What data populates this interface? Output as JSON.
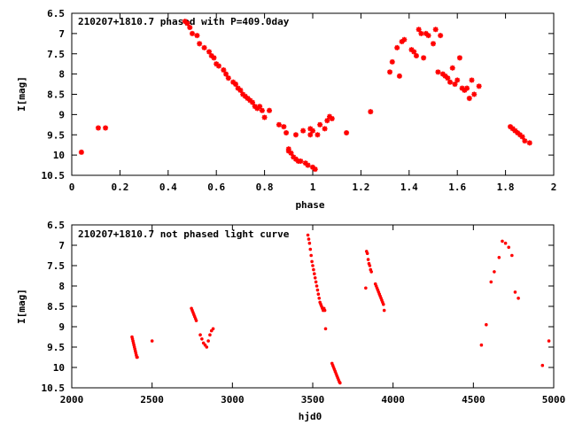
{
  "chart_data": [
    {
      "type": "scatter",
      "title": "210207+1810.7 phased with P=409.0day",
      "xlabel": "phase",
      "ylabel": "I[mag]",
      "xlim": [
        0,
        2
      ],
      "ylim": [
        10.5,
        6.5
      ],
      "y_inverted": true,
      "xticks": [
        "0",
        "0.2",
        "0.4",
        "0.6",
        "0.8",
        "1",
        "1.2",
        "1.4",
        "1.6",
        "1.8",
        "2"
      ],
      "yticks": [
        "6.5",
        "7",
        "7.5",
        "8",
        "8.5",
        "9",
        "9.5",
        "10",
        "10.5"
      ],
      "grid": false,
      "marker": "star",
      "color": "#ff0000",
      "x": [
        0.04,
        0.11,
        0.14,
        0.47,
        0.48,
        0.49,
        0.5,
        0.52,
        0.53,
        0.55,
        0.57,
        0.58,
        0.59,
        0.6,
        0.61,
        0.63,
        0.64,
        0.65,
        0.67,
        0.68,
        0.69,
        0.7,
        0.71,
        0.72,
        0.73,
        0.74,
        0.75,
        0.76,
        0.77,
        0.78,
        0.79,
        0.8,
        0.82,
        0.86,
        0.88,
        0.89,
        0.9,
        0.9,
        0.91,
        0.92,
        0.93,
        0.93,
        0.94,
        0.95,
        0.96,
        0.97,
        0.98,
        0.99,
        0.99,
        1.0,
        1.0,
        1.01,
        1.02,
        1.03,
        1.05,
        1.06,
        1.07,
        1.08,
        1.14,
        1.24,
        1.32,
        1.33,
        1.35,
        1.36,
        1.37,
        1.38,
        1.41,
        1.42,
        1.43,
        1.44,
        1.45,
        1.46,
        1.47,
        1.48,
        1.5,
        1.51,
        1.52,
        1.53,
        1.54,
        1.55,
        1.56,
        1.57,
        1.58,
        1.59,
        1.6,
        1.61,
        1.62,
        1.63,
        1.64,
        1.65,
        1.66,
        1.67,
        1.69,
        1.82,
        1.83,
        1.84,
        1.85,
        1.86,
        1.87,
        1.88,
        1.9
      ],
      "y": [
        9.93,
        9.33,
        9.33,
        6.7,
        6.75,
        6.85,
        7.0,
        7.05,
        7.25,
        7.35,
        7.45,
        7.55,
        7.6,
        7.75,
        7.8,
        7.9,
        8.0,
        8.1,
        8.2,
        8.25,
        8.35,
        8.4,
        8.5,
        8.55,
        8.6,
        8.65,
        8.7,
        8.8,
        8.85,
        8.8,
        8.9,
        9.07,
        8.9,
        9.25,
        9.3,
        9.45,
        9.85,
        9.9,
        9.95,
        10.05,
        10.1,
        9.5,
        10.15,
        10.15,
        9.4,
        10.2,
        10.25,
        9.35,
        9.5,
        10.3,
        9.4,
        10.35,
        9.5,
        9.25,
        9.35,
        9.15,
        9.05,
        9.1,
        9.45,
        8.93,
        7.95,
        7.7,
        7.35,
        8.05,
        7.2,
        7.15,
        7.4,
        7.45,
        7.55,
        6.9,
        7.0,
        7.6,
        7.0,
        7.05,
        7.25,
        6.9,
        7.95,
        7.05,
        8.0,
        8.05,
        8.1,
        8.2,
        7.85,
        8.25,
        8.15,
        7.6,
        8.35,
        8.4,
        8.35,
        8.6,
        8.15,
        8.5,
        8.3,
        9.3,
        9.35,
        9.4,
        9.45,
        9.5,
        9.55,
        9.65,
        9.7
      ]
    },
    {
      "type": "scatter",
      "title": "210207+1810.7 not phased light curve",
      "xlabel": "hjd0",
      "ylabel": "I[mag]",
      "xlim": [
        2000,
        5000
      ],
      "ylim": [
        10.5,
        6.5
      ],
      "y_inverted": true,
      "xticks": [
        "2000",
        "2500",
        "3000",
        "3500",
        "4000",
        "4500",
        "5000"
      ],
      "yticks": [
        "6.5",
        "7",
        "7.5",
        "8",
        "8.5",
        "9",
        "9.5",
        "10",
        "10.5"
      ],
      "grid": false,
      "marker": "dot",
      "color": "#ff0000",
      "x": [
        2375,
        2378,
        2381,
        2384,
        2387,
        2390,
        2393,
        2396,
        2399,
        2402,
        2405,
        2408,
        2500,
        2745,
        2750,
        2755,
        2760,
        2765,
        2770,
        2775,
        2800,
        2810,
        2820,
        2830,
        2840,
        2850,
        2860,
        2870,
        2880,
        3470,
        3475,
        3480,
        3485,
        3490,
        3495,
        3500,
        3505,
        3510,
        3515,
        3520,
        3525,
        3530,
        3535,
        3540,
        3545,
        3550,
        3555,
        3560,
        3565,
        3570,
        3575,
        3580,
        3620,
        3625,
        3630,
        3635,
        3640,
        3645,
        3650,
        3655,
        3660,
        3665,
        3670,
        3830,
        3835,
        3840,
        3845,
        3850,
        3855,
        3860,
        3865,
        3890,
        3895,
        3900,
        3905,
        3910,
        3915,
        3920,
        3925,
        3930,
        3935,
        3940,
        3945,
        4550,
        4580,
        4610,
        4630,
        4660,
        4680,
        4700,
        4720,
        4740,
        4760,
        4780,
        4930,
        4970
      ],
      "y": [
        9.25,
        9.3,
        9.35,
        9.4,
        9.45,
        9.5,
        9.55,
        9.6,
        9.65,
        9.7,
        9.75,
        9.75,
        9.35,
        8.55,
        8.6,
        8.65,
        8.7,
        8.75,
        8.8,
        8.85,
        9.2,
        9.3,
        9.4,
        9.45,
        9.5,
        9.35,
        9.2,
        9.1,
        9.05,
        6.75,
        6.85,
        6.95,
        7.1,
        7.25,
        7.4,
        7.5,
        7.6,
        7.7,
        7.8,
        7.9,
        8.0,
        8.1,
        8.2,
        8.3,
        8.4,
        8.45,
        8.5,
        8.55,
        8.6,
        8.55,
        8.6,
        9.05,
        9.9,
        9.95,
        10.0,
        10.05,
        10.1,
        10.15,
        10.2,
        10.25,
        10.3,
        10.35,
        10.38,
        8.05,
        7.15,
        7.2,
        7.35,
        7.45,
        7.5,
        7.6,
        7.65,
        7.95,
        8.0,
        8.05,
        8.1,
        8.15,
        8.2,
        8.25,
        8.3,
        8.35,
        8.4,
        8.45,
        8.6,
        9.45,
        8.95,
        7.9,
        7.65,
        7.3,
        6.9,
        6.95,
        7.05,
        7.25,
        8.15,
        8.3,
        9.95,
        9.35
      ]
    }
  ]
}
